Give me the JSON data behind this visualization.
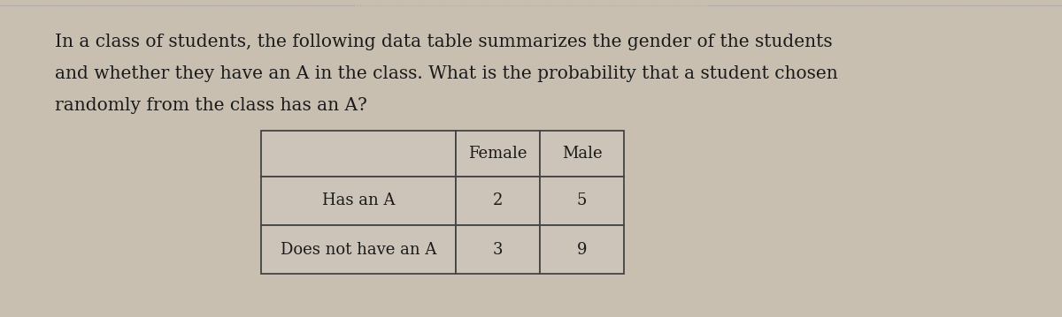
{
  "background_color": "#c8bfb0",
  "text_color": "#1a1a1a",
  "question_text_lines": [
    "In a class of students, the following data table summarizes the gender of the students",
    "and whether they have an A in the class. What is the probability that a student chosen",
    "randomly from the class has an A?"
  ],
  "question_fontsize": 14.5,
  "table": {
    "col_headers": [
      "",
      "Female",
      "Male"
    ],
    "rows": [
      [
        "Has an A",
        "2",
        "5"
      ],
      [
        "Does not have an A",
        "3",
        "9"
      ]
    ],
    "cell_bg": "#ccc4b8",
    "border_color": "#444444",
    "header_fontsize": 13,
    "cell_fontsize": 13,
    "row_label_fontsize": 13
  },
  "dotted_line_color": "#aaaaaa",
  "fig_width": 12.0,
  "fig_height": 3.59,
  "dpi": 100
}
